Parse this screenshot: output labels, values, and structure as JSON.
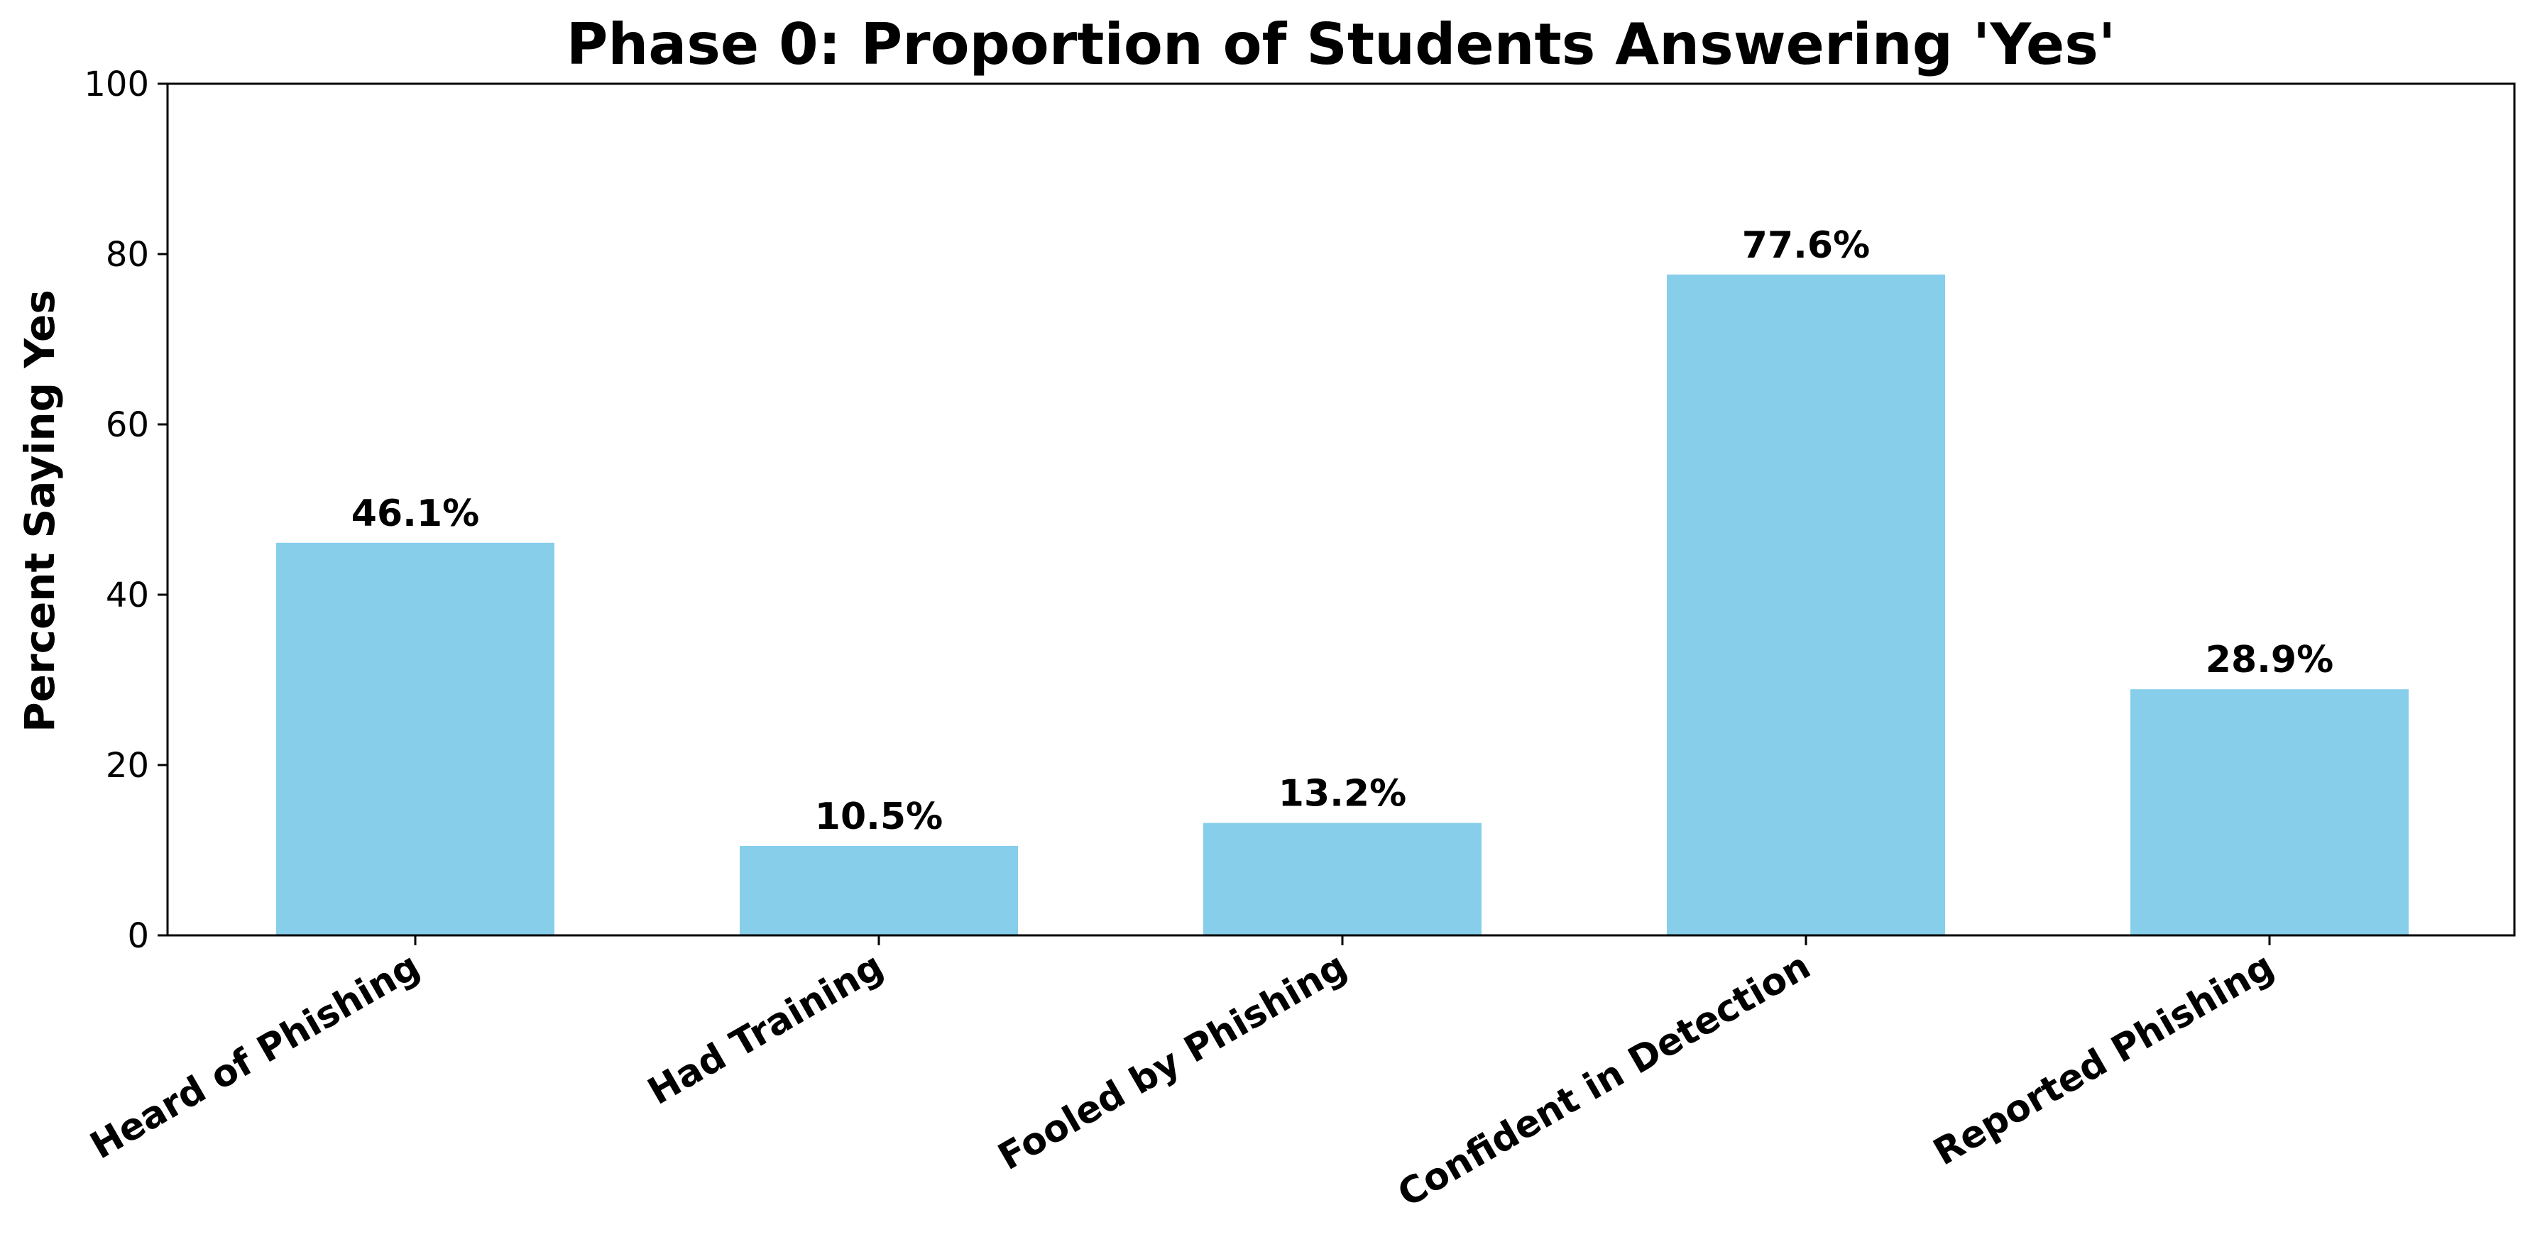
{
  "chart_data": {
    "type": "bar",
    "title": "Phase 0: Proportion of Students Answering 'Yes'",
    "xlabel": "",
    "ylabel": "Percent Saying Yes",
    "categories": [
      "Heard of Phishing",
      "Had Training",
      "Fooled by Phishing",
      "Confident in Detection",
      "Reported Phishing"
    ],
    "values": [
      46.1,
      10.5,
      13.2,
      77.6,
      28.9
    ],
    "value_labels": [
      "46.1%",
      "10.5%",
      "13.2%",
      "77.6%",
      "28.9%"
    ],
    "ylim": [
      0,
      100
    ],
    "yticks": [
      0,
      20,
      40,
      60,
      80,
      100
    ],
    "ytick_labels": [
      "0",
      "20",
      "40",
      "60",
      "80",
      "100"
    ],
    "bar_color": "#87CEEB",
    "grid": false,
    "legend": "none"
  }
}
